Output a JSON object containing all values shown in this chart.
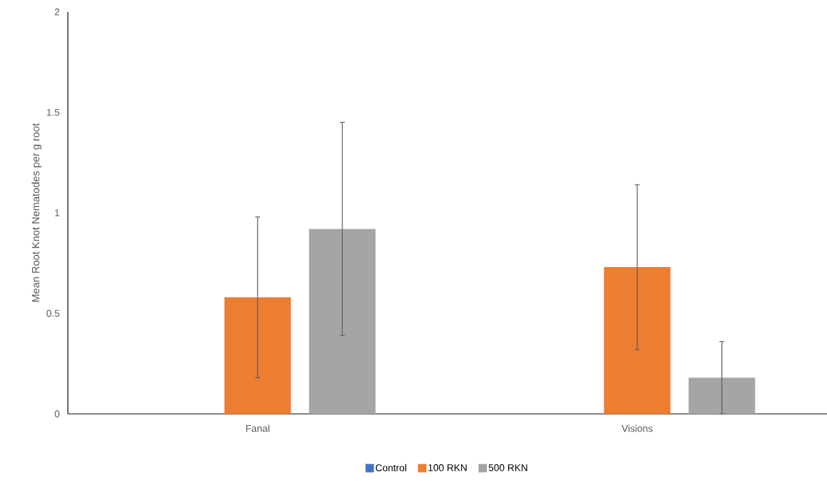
{
  "chart_data": {
    "type": "bar",
    "ylabel": "Mean Root Knot Nematodes per g root",
    "categories": [
      "Fanal",
      "Visions"
    ],
    "series": [
      {
        "name": "Control",
        "color": "#4472c4",
        "values": [
          0,
          0
        ]
      },
      {
        "name": "100 RKN",
        "color": "#ed7d31",
        "values": [
          0.58,
          0.73
        ],
        "errors": [
          0.4,
          0.41
        ]
      },
      {
        "name": "500 RKN",
        "color": "#a5a5a5",
        "values": [
          0.92,
          0.18
        ],
        "errors": [
          0.53,
          0.18
        ]
      }
    ],
    "ylim": [
      0,
      2
    ],
    "yticks": [
      0,
      0.5,
      1,
      1.5,
      2
    ],
    "grid": false,
    "legend": "bottom"
  }
}
